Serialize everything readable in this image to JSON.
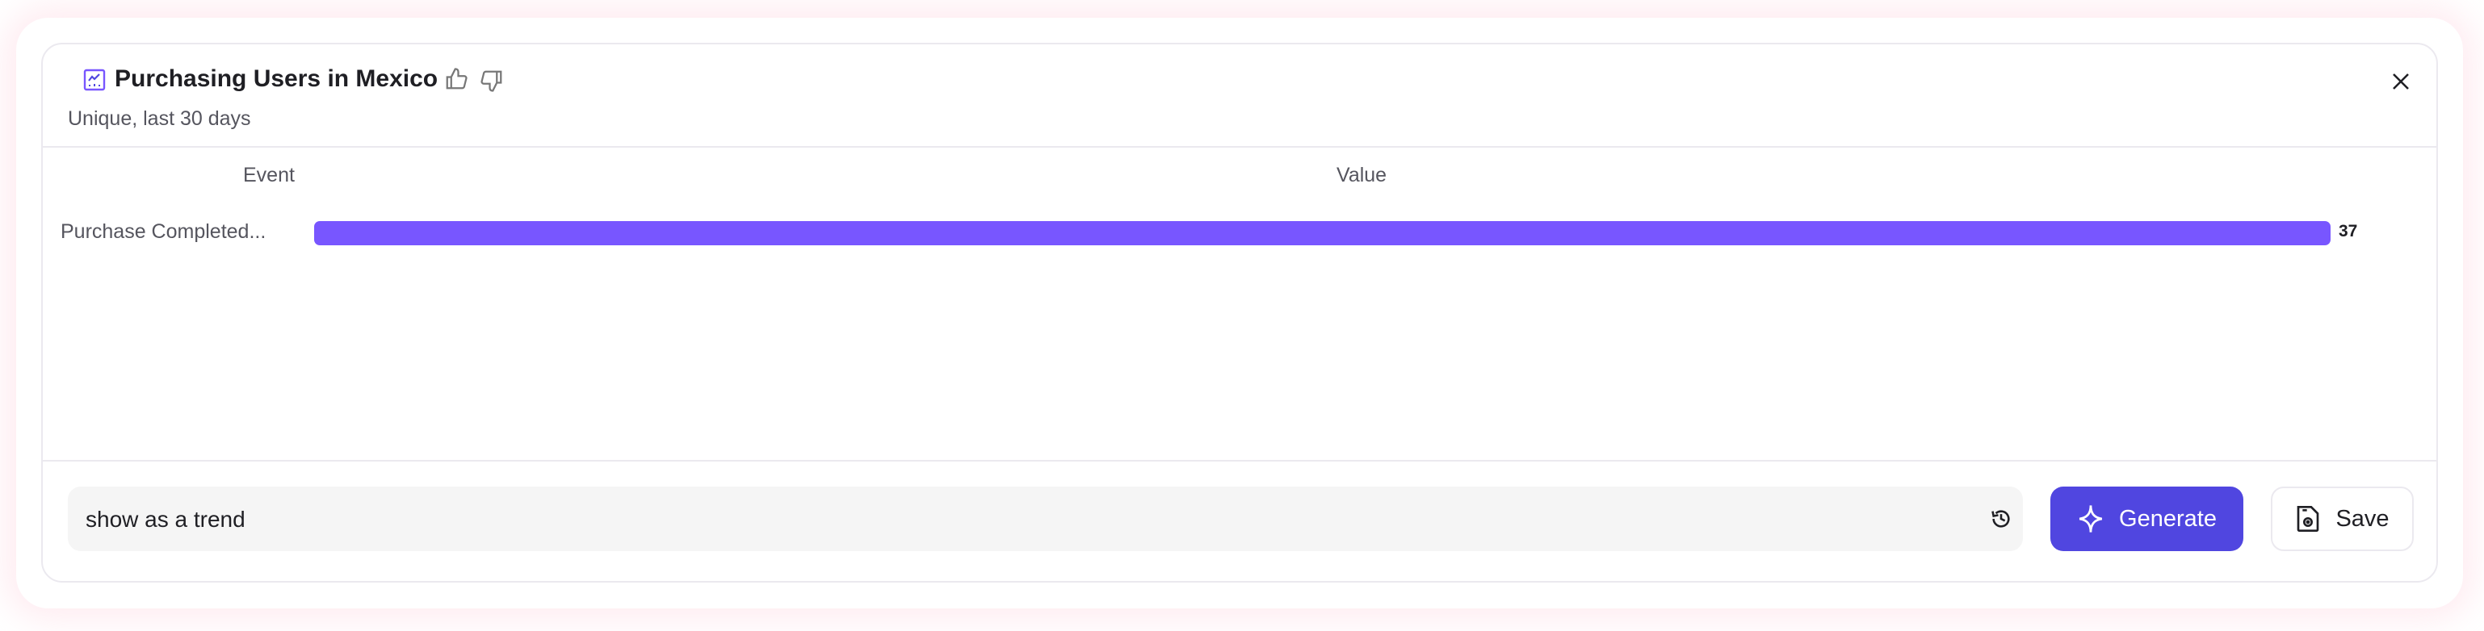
{
  "header": {
    "title": "Purchasing Users in Mexico",
    "subtitle": "Unique, last 30 days",
    "icons": [
      "line-chart-icon",
      "thumbs-up-icon",
      "thumbs-down-icon",
      "close-icon"
    ]
  },
  "chart_data": {
    "type": "bar",
    "orientation": "horizontal",
    "columns": [
      "Event",
      "Value"
    ],
    "categories": [
      "Purchase Completed..."
    ],
    "values": [
      37
    ],
    "value_labels": [
      "37"
    ],
    "color": "#7856ff"
  },
  "footer": {
    "prompt_value": "show as a trend",
    "prompt_placeholder": "",
    "generate_label": "Generate",
    "save_label": "Save",
    "accent_color": "#5046e0"
  }
}
